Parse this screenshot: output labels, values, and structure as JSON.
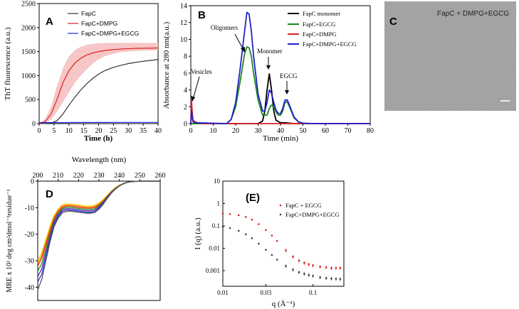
{
  "chart_data": [
    {
      "panel": "A",
      "type": "line",
      "xlabel": "Time (h)",
      "ylabel": "ThT fluorescence (a.u.)",
      "xlim": [
        0,
        40
      ],
      "ylim": [
        0,
        2500
      ],
      "xticks": [
        0,
        5,
        10,
        15,
        20,
        25,
        30,
        35,
        40
      ],
      "yticks": [
        0,
        500,
        1000,
        1500,
        2000,
        2500
      ],
      "legend_position": "top-left",
      "series": [
        {
          "name": "FapC",
          "color": "#333333",
          "x": [
            0,
            2,
            4,
            6,
            8,
            10,
            12,
            14,
            16,
            18,
            20,
            22,
            24,
            26,
            28,
            30,
            32,
            34,
            36,
            38,
            40
          ],
          "y": [
            0,
            2,
            10,
            60,
            200,
            380,
            550,
            700,
            830,
            940,
            1030,
            1100,
            1150,
            1190,
            1220,
            1250,
            1270,
            1290,
            1305,
            1320,
            1335
          ]
        },
        {
          "name": "FapC+DMPG",
          "color": "#e02020",
          "x": [
            0,
            2,
            4,
            6,
            8,
            10,
            12,
            14,
            16,
            18,
            20,
            22,
            24,
            26,
            28,
            30,
            32,
            34,
            36,
            38,
            40
          ],
          "y": [
            0,
            40,
            200,
            500,
            850,
            1100,
            1260,
            1360,
            1430,
            1470,
            1500,
            1520,
            1535,
            1545,
            1555,
            1560,
            1565,
            1568,
            1570,
            1572,
            1575
          ]
        },
        {
          "name": "FapC+DMPG+EGCG",
          "color": "#2020e0",
          "x": [
            0,
            10,
            20,
            30,
            40
          ],
          "y": [
            20,
            22,
            24,
            25,
            25
          ]
        }
      ],
      "band": {
        "series": "FapC+DMPG",
        "color": "#f7c6c6",
        "x": [
          0,
          2,
          4,
          6,
          8,
          10,
          12,
          14,
          16,
          18,
          20,
          22,
          24,
          26,
          28,
          30,
          32,
          34,
          36,
          38,
          40
        ],
        "low": [
          0,
          10,
          80,
          250,
          450,
          650,
          850,
          1000,
          1130,
          1250,
          1340,
          1400,
          1440,
          1470,
          1490,
          1500,
          1510,
          1515,
          1520,
          1522,
          1525
        ],
        "high": [
          0,
          90,
          350,
          780,
          1150,
          1400,
          1530,
          1600,
          1640,
          1660,
          1670,
          1675,
          1680,
          1680,
          1680,
          1680,
          1680,
          1680,
          1680,
          1680,
          1680
        ]
      }
    },
    {
      "panel": "B",
      "type": "line",
      "xlabel": "Time (min)",
      "ylabel": "Absorbance at 280 nm(a.u.)",
      "xlim": [
        0,
        80
      ],
      "ylim": [
        0,
        14
      ],
      "xticks": [
        0,
        10,
        20,
        30,
        40,
        50,
        60,
        70,
        80
      ],
      "yticks": [
        0,
        2,
        4,
        6,
        8,
        10,
        12,
        14
      ],
      "legend_position": "top-right",
      "series": [
        {
          "name": "FapC monomer",
          "color": "#000000",
          "x": [
            0,
            30,
            32,
            33,
            34,
            35,
            36,
            37,
            38,
            40,
            42,
            44,
            46,
            50,
            80
          ],
          "y": [
            0,
            0,
            0.3,
            1.5,
            4,
            5.9,
            4,
            1.5,
            0.4,
            0.1,
            0.1,
            0.05,
            0,
            0,
            0
          ]
        },
        {
          "name": "FapC+EGCG",
          "color": "#1a8a1a",
          "x": [
            0,
            16,
            18,
            20,
            22,
            24,
            25,
            26,
            27,
            28,
            30,
            32,
            34,
            35,
            36,
            37,
            38,
            39,
            40,
            41,
            42,
            43,
            44,
            46,
            48,
            50,
            80
          ],
          "y": [
            0,
            0,
            0.5,
            2,
            5,
            8.3,
            9.1,
            9,
            8,
            6,
            2.8,
            1,
            1,
            1.8,
            2.2,
            2,
            1.4,
            1,
            1,
            1.5,
            2.5,
            2.6,
            2,
            0.7,
            0.2,
            0,
            0
          ]
        },
        {
          "name": "FapC+DMPG",
          "color": "#e02020",
          "x": [
            0,
            0.3,
            0.6,
            1,
            2,
            3,
            5,
            80
          ],
          "y": [
            0,
            2.8,
            1.5,
            0.4,
            0.2,
            0.1,
            0,
            0
          ]
        },
        {
          "name": "FapC+DMPG+EGCG",
          "color": "#2020d0",
          "x": [
            0,
            0.3,
            0.6,
            1,
            2,
            16,
            18,
            20,
            22,
            24,
            25,
            26,
            27,
            28,
            30,
            32,
            33,
            34,
            35,
            36,
            37,
            38,
            39,
            40,
            41,
            42,
            43,
            44,
            46,
            48,
            50,
            55,
            60,
            80
          ],
          "y": [
            0,
            1.6,
            0.8,
            0.2,
            0.1,
            0,
            0.5,
            2.5,
            6.5,
            11,
            13.2,
            13,
            11,
            8,
            3.5,
            1.5,
            1.5,
            2.5,
            4,
            3.6,
            2.5,
            1.6,
            1.2,
            1.2,
            1.8,
            2.8,
            2.8,
            2.2,
            0.8,
            0.2,
            0.05,
            0,
            0,
            0
          ]
        }
      ],
      "annotations": [
        "Vesicles",
        "Oligomers",
        "Monomer",
        "EGCG"
      ]
    },
    {
      "panel": "C",
      "type": "image",
      "label": "FapC + DMPG+EGCG"
    },
    {
      "panel": "D",
      "type": "line",
      "xlabel": "Wavelength (nm)",
      "ylabel": "MRE x 10³ deg cm²dmol⁻¹residue⁻¹",
      "xlim": [
        200,
        260
      ],
      "ylim": [
        -45,
        0
      ],
      "xticks": [
        200,
        210,
        220,
        230,
        240,
        250,
        260
      ],
      "yticks": [
        0,
        -10,
        -20,
        -30,
        -40
      ],
      "series": [
        {
          "name": "c1",
          "color": "#f0d000",
          "x": [
            200,
            202,
            204,
            206,
            208,
            210,
            212,
            214,
            216,
            218,
            220,
            222,
            224,
            226,
            228,
            230,
            232,
            234,
            236,
            238,
            240,
            242,
            244,
            246,
            248,
            250,
            255,
            260
          ],
          "y": [
            -30,
            -27,
            -22,
            -17,
            -13,
            -10.5,
            -9,
            -8.6,
            -8.6,
            -8.8,
            -9,
            -9.2,
            -9.4,
            -9.4,
            -9.1,
            -8.3,
            -7,
            -5.4,
            -3.8,
            -2.5,
            -1.5,
            -0.8,
            -0.4,
            -0.2,
            -0.1,
            0,
            0,
            0
          ]
        },
        {
          "name": "c2",
          "color": "#ff8c00",
          "x": [
            200,
            202,
            204,
            206,
            208,
            210,
            212,
            214,
            216,
            218,
            220,
            222,
            224,
            226,
            228,
            230,
            232,
            234,
            236,
            238,
            240,
            242,
            244,
            246,
            248,
            250,
            255,
            260
          ],
          "y": [
            -31,
            -28,
            -23,
            -18,
            -13.6,
            -11,
            -9.4,
            -9,
            -9,
            -9.2,
            -9.4,
            -9.6,
            -9.8,
            -9.8,
            -9.5,
            -8.7,
            -7.3,
            -5.6,
            -4,
            -2.6,
            -1.6,
            -0.9,
            -0.4,
            -0.2,
            -0.1,
            0,
            0,
            0
          ]
        },
        {
          "name": "c3",
          "color": "#e02020",
          "x": [
            200,
            202,
            204,
            206,
            208,
            210,
            212,
            214,
            216,
            218,
            220,
            222,
            224,
            226,
            228,
            230,
            232,
            234,
            236,
            238,
            240,
            242,
            244,
            246,
            248,
            250,
            255,
            260
          ],
          "y": [
            -32,
            -29,
            -24,
            -19,
            -14.2,
            -11.6,
            -9.9,
            -9.4,
            -9.4,
            -9.6,
            -9.8,
            -10,
            -10.2,
            -10.2,
            -9.9,
            -9,
            -7.6,
            -5.8,
            -4.1,
            -2.7,
            -1.7,
            -0.9,
            -0.4,
            -0.2,
            -0.1,
            0,
            0,
            0
          ]
        },
        {
          "name": "c4",
          "color": "#20a020",
          "x": [
            200,
            202,
            204,
            206,
            208,
            210,
            212,
            214,
            216,
            218,
            220,
            222,
            224,
            226,
            228,
            230,
            232,
            234,
            236,
            238,
            240,
            242,
            244,
            246,
            248,
            250,
            255,
            260
          ],
          "y": [
            -34,
            -31,
            -25.5,
            -20,
            -15,
            -12.2,
            -10.4,
            -9.9,
            -9.9,
            -10.1,
            -10.3,
            -10.5,
            -10.7,
            -10.7,
            -10.4,
            -9.4,
            -7.9,
            -6,
            -4.3,
            -2.8,
            -1.7,
            -0.9,
            -0.4,
            -0.2,
            -0.1,
            0,
            0,
            0
          ]
        },
        {
          "name": "c5",
          "color": "#7020c0",
          "x": [
            200,
            202,
            204,
            206,
            208,
            210,
            212,
            214,
            216,
            218,
            220,
            222,
            224,
            226,
            228,
            230,
            232,
            234,
            236,
            238,
            240,
            242,
            244,
            246,
            248,
            250,
            255,
            260
          ],
          "y": [
            -36,
            -33,
            -27,
            -21,
            -15.8,
            -12.8,
            -10.9,
            -10.4,
            -10.4,
            -10.6,
            -10.8,
            -11,
            -11.2,
            -11.2,
            -10.9,
            -9.8,
            -8.2,
            -6.2,
            -4.4,
            -2.9,
            -1.8,
            -1,
            -0.4,
            -0.2,
            -0.1,
            0,
            0,
            0
          ]
        },
        {
          "name": "c6",
          "color": "#2040d0",
          "x": [
            200,
            202,
            204,
            206,
            208,
            210,
            212,
            214,
            216,
            218,
            220,
            222,
            224,
            226,
            228,
            230,
            232,
            234,
            236,
            238,
            240,
            242,
            244,
            246,
            248,
            250,
            255,
            260
          ],
          "y": [
            -38,
            -35,
            -28.5,
            -22,
            -16.5,
            -13.4,
            -11.4,
            -10.9,
            -10.9,
            -11.1,
            -11.3,
            -11.5,
            -11.7,
            -11.7,
            -11.4,
            -10.2,
            -8.5,
            -6.4,
            -4.5,
            -3,
            -1.8,
            -1,
            -0.4,
            -0.2,
            -0.1,
            0,
            0,
            0
          ]
        },
        {
          "name": "c7",
          "color": "#555555",
          "x": [
            200,
            202,
            204,
            206,
            208,
            210,
            212,
            214,
            216,
            218,
            220,
            222,
            224,
            226,
            228,
            230,
            232,
            234,
            236,
            238,
            240,
            242,
            244,
            246,
            248,
            250,
            255,
            260
          ],
          "y": [
            -41,
            -37,
            -30,
            -23,
            -17.2,
            -14,
            -12,
            -11.4,
            -11.3,
            -11.5,
            -11.7,
            -11.9,
            -12.1,
            -12.1,
            -11.8,
            -10.6,
            -8.8,
            -6.6,
            -4.6,
            -3,
            -1.8,
            -1,
            -0.4,
            -0.2,
            -0.1,
            0,
            0,
            0
          ]
        }
      ]
    },
    {
      "panel": "E",
      "type": "scatter",
      "panel_label": "(E)",
      "xlabel": "q (Å⁻¹)",
      "ylabel": "I (q) (a.u.)",
      "xscale": "log",
      "yscale": "log",
      "xlim": [
        0.01,
        0.22
      ],
      "ylim": [
        0.0002,
        10
      ],
      "xtick_labels": [
        "0.01",
        "0.03",
        "0.1"
      ],
      "ytick_labels": [
        "10",
        "1",
        "0.1",
        "0.01",
        "0.001"
      ],
      "legend_position": "top-right",
      "series": [
        {
          "name": "FapC + EGCG",
          "color": "#e02020",
          "x": [
            0.01,
            0.012,
            0.015,
            0.018,
            0.021,
            0.025,
            0.03,
            0.035,
            0.04,
            0.05,
            0.06,
            0.07,
            0.08,
            0.09,
            0.1,
            0.12,
            0.14,
            0.16,
            0.18,
            0.2
          ],
          "y": [
            0.36,
            0.34,
            0.3,
            0.25,
            0.19,
            0.12,
            0.065,
            0.037,
            0.021,
            0.008,
            0.0042,
            0.0028,
            0.0022,
            0.0019,
            0.0017,
            0.0015,
            0.0014,
            0.0013,
            0.0013,
            0.0013
          ]
        },
        {
          "name": "FapC+DMPG+EGCG",
          "color": "#444444",
          "x": [
            0.01,
            0.012,
            0.015,
            0.018,
            0.021,
            0.025,
            0.03,
            0.035,
            0.04,
            0.05,
            0.06,
            0.07,
            0.08,
            0.09,
            0.1,
            0.12,
            0.14,
            0.16,
            0.18,
            0.2
          ],
          "y": [
            0.09,
            0.08,
            0.06,
            0.042,
            0.028,
            0.016,
            0.0085,
            0.005,
            0.0031,
            0.0016,
            0.0011,
            0.00085,
            0.00072,
            0.00064,
            0.00058,
            0.0005,
            0.00046,
            0.00044,
            0.00043,
            0.00042
          ]
        }
      ]
    }
  ]
}
